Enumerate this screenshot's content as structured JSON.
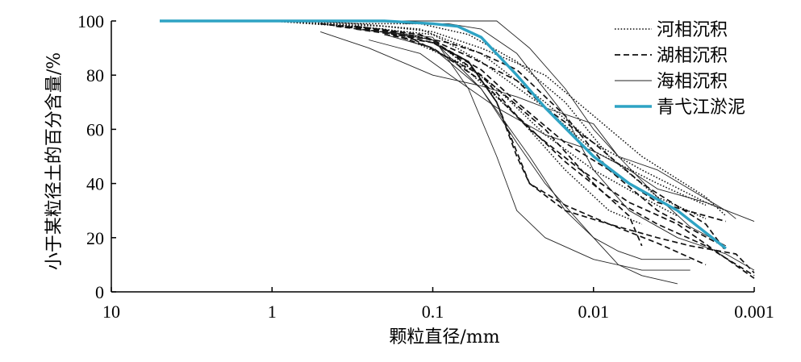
{
  "chart_data": {
    "type": "line",
    "title": "",
    "xlabel": "颗粒直径/mm",
    "ylabel": "小于某粒径土的百分含量/%",
    "x_scale": "log",
    "x_reversed": true,
    "xlim": [
      10,
      0.001
    ],
    "ylim": [
      0,
      100
    ],
    "x_ticks": [
      10,
      1,
      0.1,
      0.01,
      0.001
    ],
    "x_tick_labels": [
      "10",
      "1",
      "0.1",
      "0.01",
      "0.001"
    ],
    "y_ticks": [
      0,
      20,
      40,
      60,
      80,
      100
    ],
    "y_tick_labels": [
      "0",
      "20",
      "40",
      "60",
      "80",
      "100"
    ],
    "grid": false,
    "legend_position": "top-right",
    "legend": [
      {
        "label": "河相沉积",
        "style": "dotted",
        "color": "#000000"
      },
      {
        "label": "湖相沉积",
        "style": "dashed",
        "color": "#000000"
      },
      {
        "label": "海相沉积",
        "style": "thin",
        "color": "#000000"
      },
      {
        "label": "青弋江淤泥",
        "style": "thick",
        "color": "#2ea3c4"
      }
    ],
    "series": [
      {
        "group": 0,
        "points": [
          [
            1,
            100
          ],
          [
            0.5,
            99
          ],
          [
            0.2,
            98
          ],
          [
            0.1,
            96
          ],
          [
            0.05,
            90
          ],
          [
            0.02,
            80
          ],
          [
            0.01,
            65
          ],
          [
            0.005,
            50
          ],
          [
            0.002,
            35
          ],
          [
            0.0015,
            28
          ]
        ]
      },
      {
        "group": 0,
        "points": [
          [
            1,
            100
          ],
          [
            0.3,
            99
          ],
          [
            0.12,
            97
          ],
          [
            0.05,
            88
          ],
          [
            0.02,
            70
          ],
          [
            0.01,
            55
          ],
          [
            0.005,
            45
          ],
          [
            0.002,
            33
          ],
          [
            0.0015,
            30
          ]
        ]
      },
      {
        "group": 0,
        "points": [
          [
            0.6,
            100
          ],
          [
            0.3,
            99
          ],
          [
            0.12,
            99
          ],
          [
            0.06,
            95
          ],
          [
            0.03,
            85
          ],
          [
            0.015,
            70
          ],
          [
            0.008,
            50
          ],
          [
            0.004,
            35
          ],
          [
            0.002,
            27
          ]
        ]
      },
      {
        "group": 0,
        "points": [
          [
            1,
            100
          ],
          [
            0.2,
            97
          ],
          [
            0.1,
            93
          ],
          [
            0.04,
            75
          ],
          [
            0.02,
            58
          ],
          [
            0.01,
            45
          ],
          [
            0.005,
            35
          ],
          [
            0.003,
            28
          ]
        ]
      },
      {
        "group": 0,
        "points": [
          [
            0.5,
            99
          ],
          [
            0.2,
            97
          ],
          [
            0.07,
            85
          ],
          [
            0.03,
            65
          ],
          [
            0.015,
            45
          ],
          [
            0.008,
            30
          ],
          [
            0.005,
            25
          ]
        ]
      },
      {
        "group": 0,
        "points": [
          [
            1,
            100
          ],
          [
            0.3,
            98
          ],
          [
            0.1,
            95
          ],
          [
            0.05,
            85
          ],
          [
            0.02,
            68
          ],
          [
            0.01,
            52
          ],
          [
            0.004,
            40
          ],
          [
            0.002,
            32
          ]
        ]
      },
      {
        "group": 1,
        "points": [
          [
            0.5,
            99
          ],
          [
            0.2,
            96
          ],
          [
            0.1,
            92
          ],
          [
            0.05,
            82
          ],
          [
            0.03,
            70
          ],
          [
            0.015,
            55
          ],
          [
            0.008,
            45
          ],
          [
            0.004,
            33
          ],
          [
            0.0015,
            26
          ]
        ]
      },
      {
        "group": 1,
        "points": [
          [
            0.3,
            98
          ],
          [
            0.12,
            95
          ],
          [
            0.06,
            87
          ],
          [
            0.03,
            78
          ],
          [
            0.02,
            68
          ],
          [
            0.01,
            55
          ],
          [
            0.005,
            40
          ],
          [
            0.002,
            25
          ],
          [
            0.0015,
            15
          ]
        ]
      },
      {
        "group": 1,
        "points": [
          [
            0.3,
            98
          ],
          [
            0.15,
            95
          ],
          [
            0.08,
            92
          ],
          [
            0.05,
            88
          ],
          [
            0.03,
            82
          ],
          [
            0.015,
            65
          ],
          [
            0.008,
            45
          ],
          [
            0.004,
            30
          ],
          [
            0.0017,
            18
          ]
        ]
      },
      {
        "group": 1,
        "points": [
          [
            0.5,
            99
          ],
          [
            0.12,
            95
          ],
          [
            0.06,
            85
          ],
          [
            0.04,
            70
          ],
          [
            0.03,
            50
          ],
          [
            0.025,
            40
          ],
          [
            0.015,
            30
          ],
          [
            0.008,
            25
          ],
          [
            0.004,
            18
          ],
          [
            0.002,
            10
          ]
        ]
      },
      {
        "group": 1,
        "points": [
          [
            0.2,
            95
          ],
          [
            0.1,
            92
          ],
          [
            0.06,
            85
          ],
          [
            0.04,
            70
          ],
          [
            0.025,
            40
          ],
          [
            0.015,
            32
          ],
          [
            0.008,
            25
          ],
          [
            0.004,
            20
          ],
          [
            0.0025,
            17
          ],
          [
            0.0013,
            14
          ],
          [
            0.001,
            7
          ]
        ]
      },
      {
        "group": 1,
        "points": [
          [
            0.3,
            97
          ],
          [
            0.1,
            93
          ],
          [
            0.05,
            80
          ],
          [
            0.03,
            65
          ],
          [
            0.015,
            48
          ],
          [
            0.008,
            35
          ],
          [
            0.004,
            25
          ],
          [
            0.002,
            17
          ],
          [
            0.001,
            6
          ]
        ]
      },
      {
        "group": 1,
        "points": [
          [
            0.4,
            98
          ],
          [
            0.15,
            95
          ],
          [
            0.05,
            80
          ],
          [
            0.02,
            60
          ],
          [
            0.01,
            40
          ],
          [
            0.006,
            28
          ],
          [
            0.005,
            17
          ]
        ]
      },
      {
        "group": 1,
        "points": [
          [
            0.2,
            96
          ],
          [
            0.1,
            90
          ],
          [
            0.05,
            78
          ],
          [
            0.025,
            60
          ],
          [
            0.012,
            45
          ],
          [
            0.006,
            33
          ],
          [
            0.003,
            25
          ],
          [
            0.001,
            5
          ]
        ]
      },
      {
        "group": 2,
        "points": [
          [
            0.3,
            97
          ],
          [
            0.1,
            94
          ],
          [
            0.06,
            75
          ],
          [
            0.04,
            50
          ],
          [
            0.03,
            30
          ],
          [
            0.02,
            20
          ],
          [
            0.01,
            12
          ],
          [
            0.005,
            8
          ],
          [
            0.0025,
            8
          ]
        ]
      },
      {
        "group": 2,
        "points": [
          [
            0.2,
            95
          ],
          [
            0.1,
            90
          ],
          [
            0.05,
            75
          ],
          [
            0.03,
            55
          ],
          [
            0.02,
            40
          ],
          [
            0.01,
            20
          ],
          [
            0.007,
            10
          ],
          [
            0.005,
            6
          ],
          [
            0.003,
            3
          ]
        ]
      },
      {
        "group": 2,
        "points": [
          [
            0.2,
            96
          ],
          [
            0.1,
            93
          ],
          [
            0.05,
            75
          ],
          [
            0.025,
            50
          ],
          [
            0.015,
            30
          ],
          [
            0.01,
            20
          ],
          [
            0.007,
            15
          ],
          [
            0.005,
            12
          ],
          [
            0.0025,
            12
          ]
        ]
      },
      {
        "group": 2,
        "points": [
          [
            0.5,
            100
          ],
          [
            0.15,
            100
          ],
          [
            0.05,
            100
          ],
          [
            0.04,
            100
          ],
          [
            0.025,
            90
          ],
          [
            0.015,
            75
          ],
          [
            0.01,
            60
          ],
          [
            0.007,
            50
          ],
          [
            0.004,
            45
          ],
          [
            0.0015,
            30
          ],
          [
            0.0013,
            27
          ]
        ]
      },
      {
        "group": 2,
        "points": [
          [
            0.5,
            96
          ],
          [
            0.25,
            90
          ],
          [
            0.1,
            80
          ],
          [
            0.05,
            76
          ],
          [
            0.03,
            72
          ],
          [
            0.02,
            68
          ],
          [
            0.01,
            62
          ],
          [
            0.007,
            50
          ],
          [
            0.004,
            35
          ],
          [
            0.0025,
            24
          ],
          [
            0.0015,
            17
          ]
        ]
      },
      {
        "group": 2,
        "points": [
          [
            0.25,
            93
          ],
          [
            0.12,
            88
          ],
          [
            0.07,
            78
          ],
          [
            0.04,
            68
          ],
          [
            0.02,
            58
          ],
          [
            0.01,
            52
          ],
          [
            0.006,
            45
          ],
          [
            0.004,
            38
          ],
          [
            0.002,
            33
          ],
          [
            0.001,
            26
          ]
        ]
      },
      {
        "group": 2,
        "points": [
          [
            0.15,
            99
          ],
          [
            0.08,
            99
          ],
          [
            0.05,
            97
          ],
          [
            0.03,
            88
          ],
          [
            0.015,
            65
          ],
          [
            0.01,
            45
          ],
          [
            0.006,
            30
          ],
          [
            0.003,
            20
          ],
          [
            0.0015,
            14
          ],
          [
            0.001,
            8
          ]
        ]
      },
      {
        "group": 3,
        "points": [
          [
            5,
            100
          ],
          [
            0.5,
            100
          ],
          [
            0.2,
            100
          ],
          [
            0.1,
            99
          ],
          [
            0.07,
            98
          ],
          [
            0.05,
            94
          ],
          [
            0.03,
            80
          ],
          [
            0.02,
            68
          ],
          [
            0.01,
            50
          ],
          [
            0.006,
            40
          ],
          [
            0.003,
            30
          ],
          [
            0.0015,
            16
          ]
        ]
      }
    ]
  }
}
